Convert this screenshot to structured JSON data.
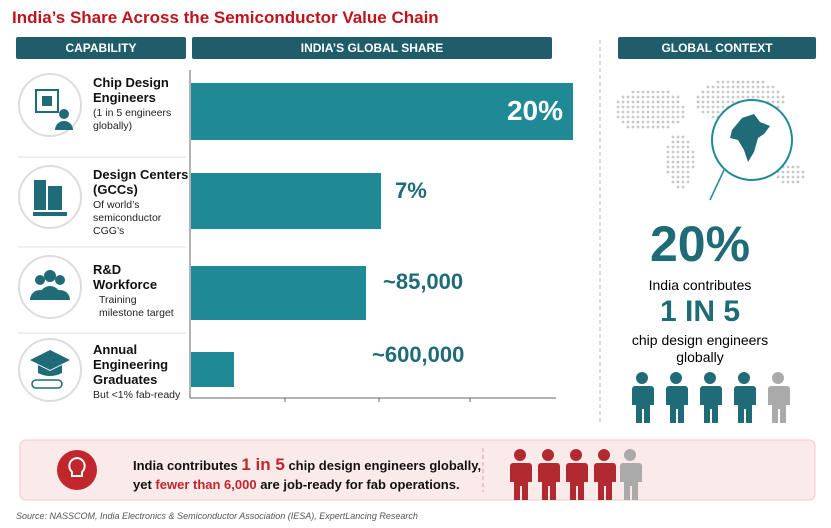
{
  "header": {
    "title": "India’s Share Across the Semiconductor Value Chain"
  },
  "columns": [
    "CAPABILITY",
    "INDIA’S GLOBAL SHARE",
    "GLOBAL CONTEXT"
  ],
  "rows": [
    {
      "title_lines": [
        "Chip Design",
        "Engineers"
      ],
      "subtitle_lines": [
        "(1 in 5 engineers",
        "globally)"
      ],
      "value": "20%"
    },
    {
      "title_lines": [
        "Design Centers",
        "(GCCs)"
      ],
      "subtitle_lines": [
        "Of world’s",
        "semiconductor",
        "CGG’s"
      ],
      "value": "7%"
    },
    {
      "title_lines": [
        "R&D",
        "Workforce"
      ],
      "subtitle_lines": [
        "Training",
        "milestone target"
      ],
      "value": "~85,000"
    },
    {
      "title_lines": [
        "Annual",
        "Engineering",
        "Graduates"
      ],
      "subtitle_lines": [
        "But <1% fab-ready"
      ],
      "value": "~600,000"
    }
  ],
  "global_context": {
    "big_stat": "20%",
    "line1": "India contributes",
    "ratio": "1 IN 5",
    "line2": "chip design engineers",
    "line3": "globally"
  },
  "banner": {
    "line1": [
      "India contributes",
      "1 in 5",
      "chip design engineers globally,"
    ],
    "line2": [
      "yet",
      "fewer than 6,000",
      "are job-ready for fab operations."
    ]
  },
  "source": "Source: NASSCOM, India Electronics & Semiconductor Association (IESA), ExpertLancing Research"
}
